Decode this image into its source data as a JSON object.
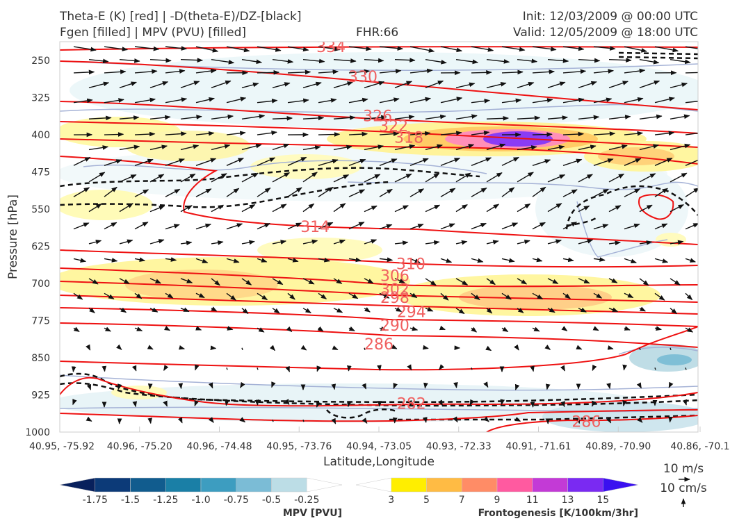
{
  "header": {
    "title_line1": "Theta-E (K) [red] | -D(theta-E)/DZ-[black]",
    "title_line2": "Fgen [filled] | MPV (PVU) [filled]",
    "fhr": "FHR:66",
    "init": "Init: 12/03/2009 @ 00:00 UTC",
    "valid": "Valid: 12/05/2009 @ 18:00 UTC"
  },
  "chart_data": {
    "type": "cross-section",
    "xlabel": "Latitude,Longitude",
    "ylabel": "Pressure [hPa]",
    "x_ticks": [
      "40.95, -75.92",
      "40.96, -75.20",
      "40.96, -74.48",
      "40.95, -73.76",
      "40.94, -73.05",
      "40.93, -72.33",
      "40.91, -71.61",
      "40.89, -70.90",
      "40.86, -70.1"
    ],
    "y_ticks": [
      250,
      325,
      400,
      475,
      550,
      625,
      700,
      775,
      850,
      925,
      1000
    ],
    "ylim": [
      1000,
      212
    ],
    "theta_e_labels": [
      {
        "value": "334",
        "xf": 0.425,
        "p": 222
      },
      {
        "value": "330",
        "xf": 0.475,
        "p": 282
      },
      {
        "value": "326",
        "xf": 0.498,
        "p": 361
      },
      {
        "value": "322",
        "xf": 0.523,
        "p": 382
      },
      {
        "value": "318",
        "xf": 0.547,
        "p": 405
      },
      {
        "value": "314",
        "xf": 0.4,
        "p": 585
      },
      {
        "value": "310",
        "xf": 0.55,
        "p": 660
      },
      {
        "value": "306",
        "xf": 0.525,
        "p": 684
      },
      {
        "value": "302",
        "xf": 0.525,
        "p": 711
      },
      {
        "value": "298",
        "xf": 0.525,
        "p": 728
      },
      {
        "value": "294",
        "xf": 0.551,
        "p": 757
      },
      {
        "value": "290",
        "xf": 0.525,
        "p": 784
      },
      {
        "value": "286",
        "xf": 0.5,
        "p": 822
      },
      {
        "value": "282",
        "xf": 0.551,
        "p": 942
      },
      {
        "value": "286",
        "xf": 0.825,
        "p": 978
      }
    ],
    "mpv_colorbar": {
      "title": "MPV [PVU]",
      "ticks": [
        "-1.75",
        "-1.5",
        "-1.25",
        "-1.0",
        "-0.75",
        "-0.5",
        "-0.25"
      ],
      "colors": [
        "#08205c",
        "#0c3a78",
        "#115c8e",
        "#1a7fa6",
        "#3d9dc0",
        "#7bbcd6",
        "#bcdde6",
        "#ffffff"
      ]
    },
    "fgen_colorbar": {
      "title": "Frontogenesis [K/100km/3hr]",
      "ticks": [
        "3",
        "5",
        "7",
        "9",
        "11",
        "13",
        "15"
      ],
      "colors": [
        "#ffffff",
        "#ffee00",
        "#ffbb44",
        "#ff8c66",
        "#ff5aa0",
        "#c33ad6",
        "#7a2af2",
        "#3a10f0"
      ]
    },
    "vector_key": {
      "horizontal": "10 m/s",
      "vertical": "10 cm/s"
    }
  }
}
